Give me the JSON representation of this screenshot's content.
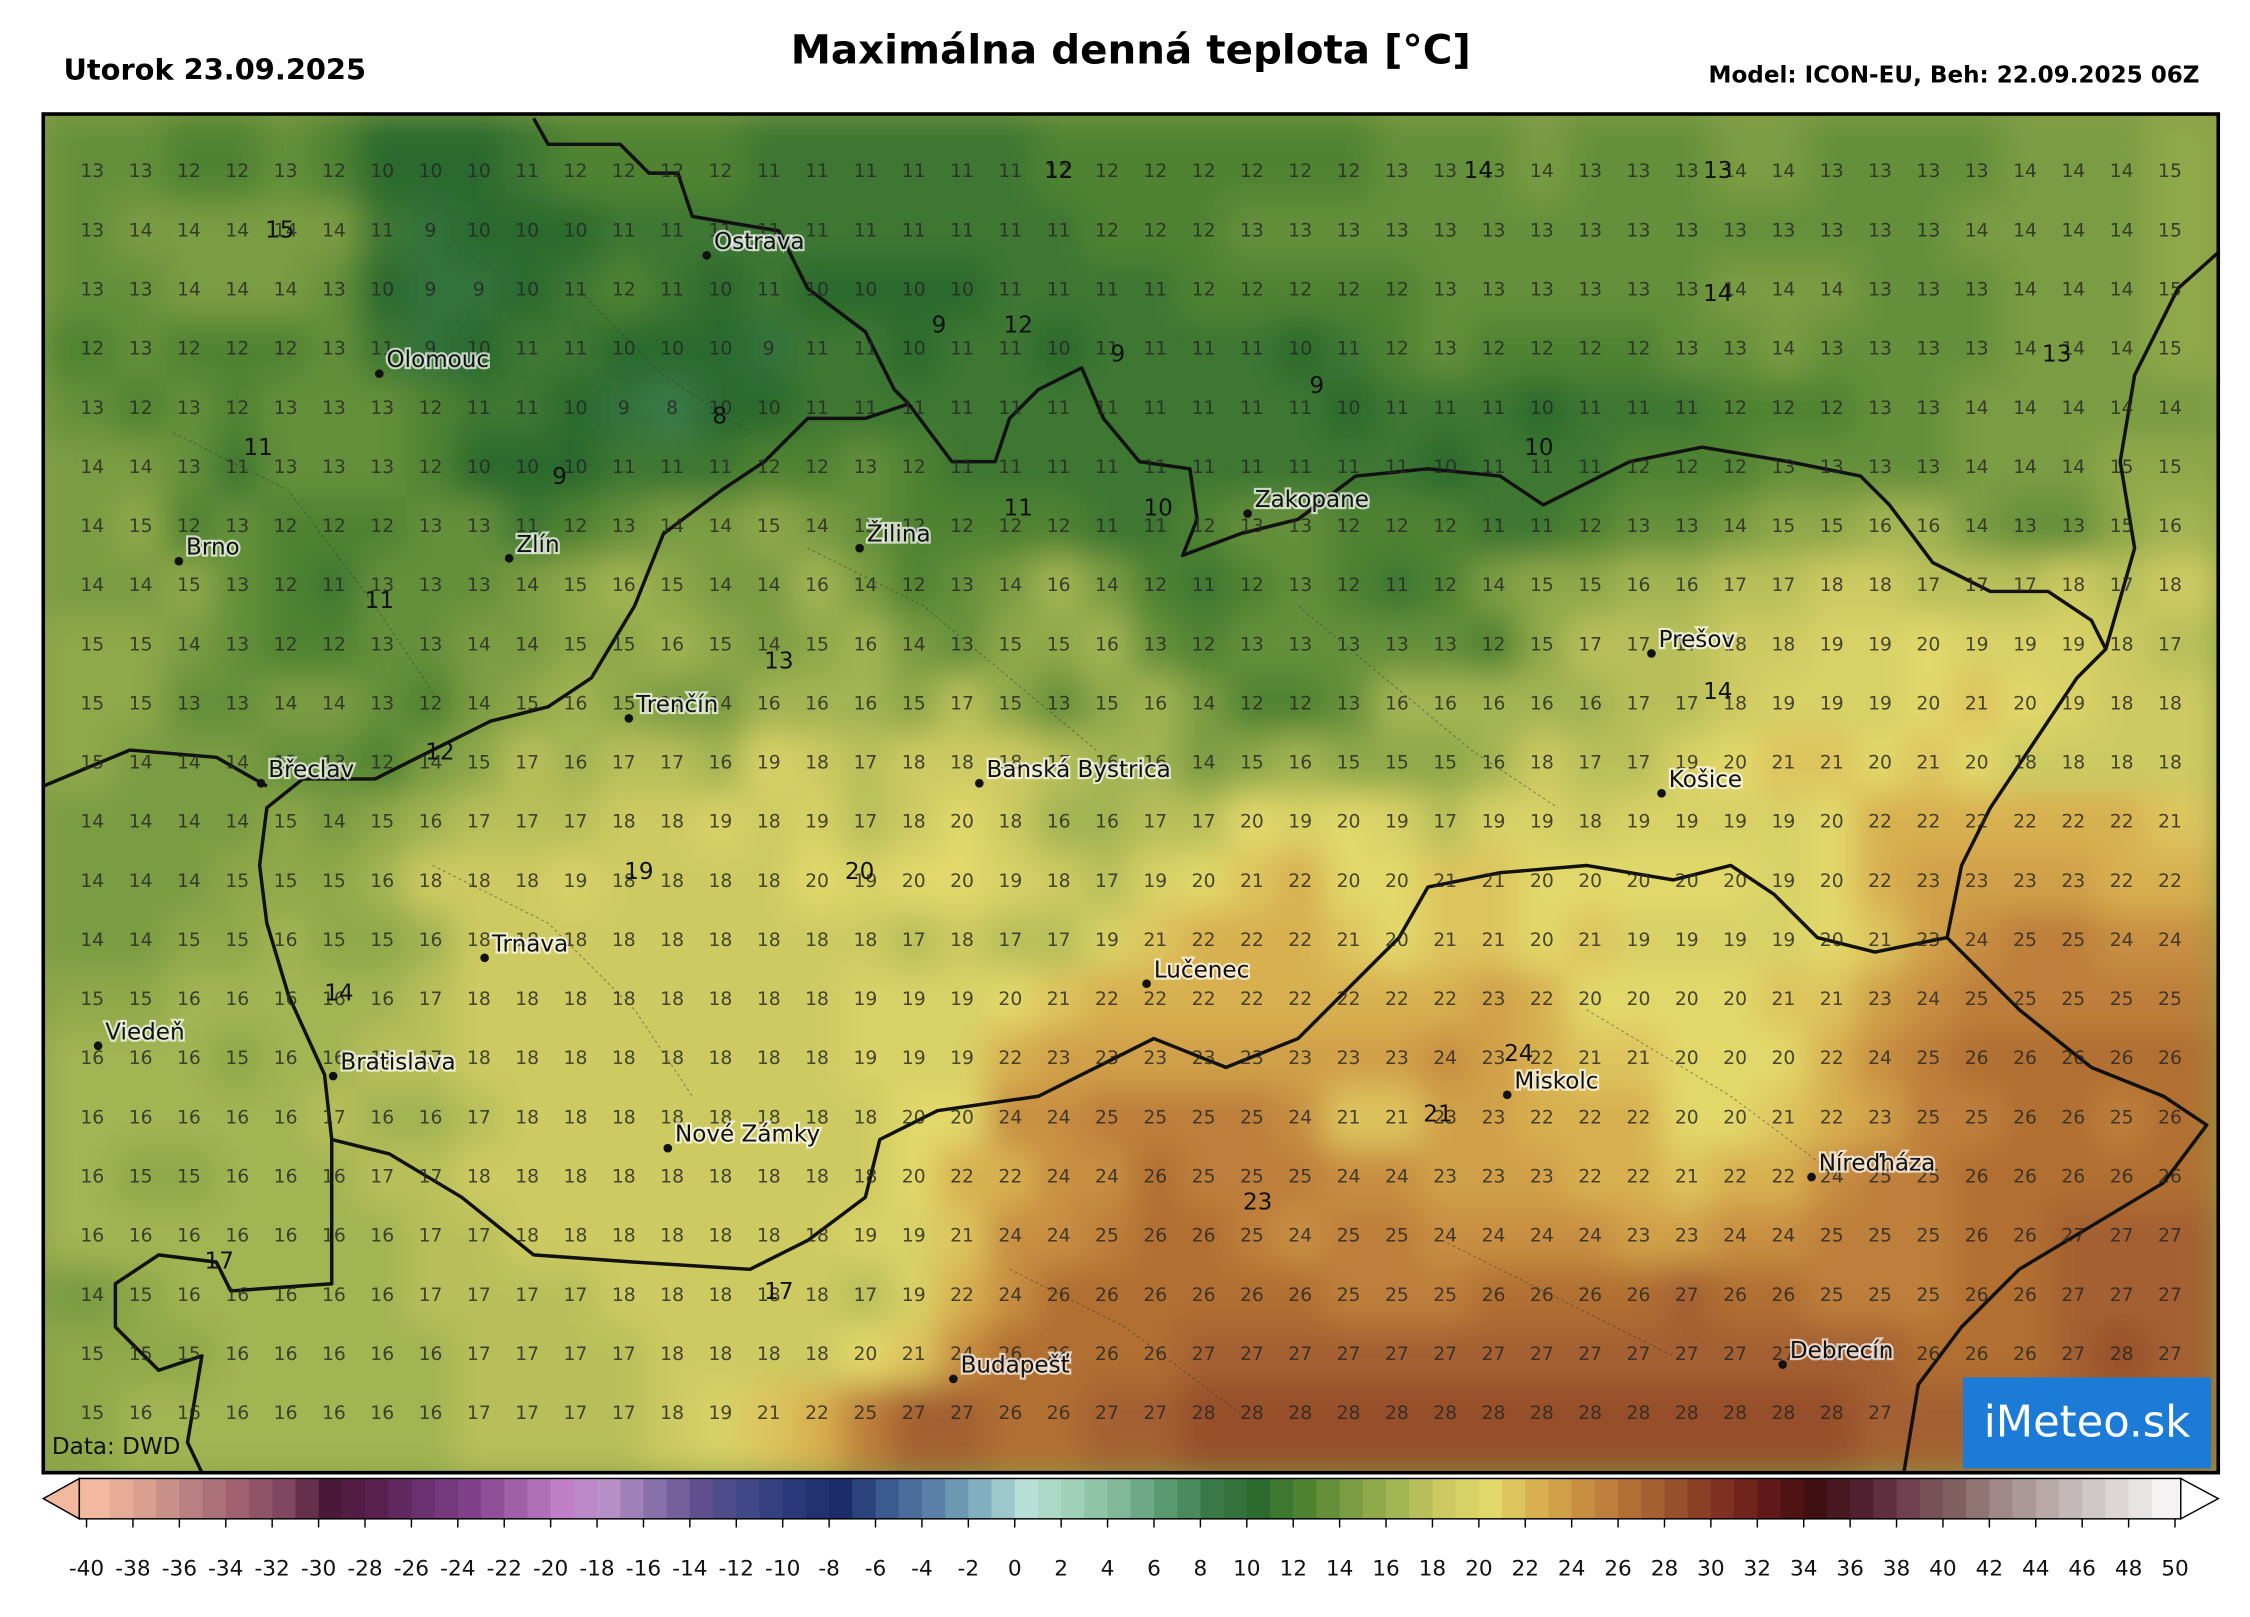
{
  "header": {
    "date": "Utorok 23.09.2025",
    "title": "Maximálna denná teplota [°C]",
    "model": "Model: ICON-EU, Beh: 22.09.2025 06Z"
  },
  "map": {
    "source": "Data: DWD",
    "logo": "iMeteo.sk",
    "grid": [
      [
        13,
        13,
        12,
        12,
        13,
        12,
        10,
        10,
        10,
        11,
        12,
        12,
        12,
        12,
        11,
        11,
        11,
        11,
        11,
        11,
        12,
        12,
        12,
        12,
        12,
        12,
        12,
        13,
        13,
        13,
        14,
        13,
        13,
        13,
        14,
        14,
        13,
        13,
        13,
        13,
        14,
        14,
        14,
        15
      ],
      [
        13,
        14,
        14,
        14,
        14,
        14,
        11,
        9,
        10,
        10,
        10,
        11,
        11,
        11,
        11,
        11,
        11,
        11,
        11,
        11,
        11,
        12,
        12,
        12,
        13,
        13,
        13,
        13,
        13,
        13,
        13,
        13,
        13,
        13,
        13,
        13,
        13,
        13,
        13,
        14,
        14,
        14,
        14,
        15
      ],
      [
        13,
        13,
        14,
        14,
        14,
        13,
        10,
        9,
        9,
        10,
        11,
        12,
        11,
        10,
        11,
        10,
        10,
        10,
        10,
        11,
        11,
        11,
        11,
        12,
        12,
        12,
        12,
        12,
        13,
        13,
        13,
        13,
        13,
        13,
        14,
        14,
        14,
        13,
        13,
        13,
        14,
        14,
        14,
        15
      ],
      [
        12,
        13,
        12,
        12,
        12,
        13,
        11,
        9,
        10,
        11,
        11,
        10,
        10,
        10,
        9,
        11,
        11,
        10,
        11,
        11,
        10,
        11,
        11,
        11,
        11,
        10,
        11,
        12,
        13,
        12,
        12,
        12,
        12,
        13,
        13,
        14,
        13,
        13,
        13,
        13,
        14,
        14,
        14,
        15
      ],
      [
        13,
        12,
        13,
        12,
        13,
        13,
        13,
        12,
        11,
        11,
        10,
        9,
        8,
        10,
        10,
        11,
        11,
        11,
        11,
        11,
        11,
        11,
        11,
        11,
        11,
        11,
        10,
        11,
        11,
        11,
        10,
        11,
        11,
        11,
        12,
        12,
        12,
        13,
        13,
        14,
        14,
        14,
        14,
        14
      ],
      [
        14,
        14,
        13,
        11,
        13,
        13,
        13,
        12,
        10,
        10,
        10,
        11,
        11,
        11,
        12,
        12,
        13,
        12,
        11,
        11,
        11,
        11,
        11,
        11,
        11,
        11,
        11,
        11,
        10,
        11,
        11,
        11,
        12,
        12,
        12,
        13,
        13,
        13,
        13,
        14,
        14,
        14,
        15,
        15
      ],
      [
        14,
        15,
        12,
        13,
        12,
        12,
        12,
        13,
        13,
        11,
        12,
        13,
        14,
        14,
        15,
        14,
        13,
        12,
        12,
        12,
        12,
        11,
        11,
        12,
        13,
        13,
        12,
        12,
        12,
        11,
        11,
        12,
        13,
        13,
        14,
        15,
        15,
        16,
        16,
        14,
        13,
        13,
        15,
        16
      ],
      [
        14,
        14,
        15,
        13,
        12,
        11,
        13,
        13,
        13,
        14,
        15,
        16,
        15,
        14,
        14,
        16,
        14,
        12,
        13,
        14,
        16,
        14,
        12,
        11,
        12,
        13,
        12,
        11,
        12,
        14,
        15,
        15,
        16,
        16,
        17,
        17,
        18,
        18,
        17,
        17,
        17,
        18,
        17,
        18
      ],
      [
        15,
        15,
        14,
        13,
        12,
        12,
        13,
        13,
        14,
        14,
        15,
        15,
        16,
        15,
        14,
        15,
        16,
        14,
        13,
        15,
        15,
        16,
        13,
        12,
        13,
        13,
        13,
        13,
        13,
        12,
        15,
        17,
        17,
        17,
        18,
        18,
        19,
        19,
        20,
        19,
        19,
        19,
        18,
        17
      ],
      [
        15,
        15,
        13,
        13,
        14,
        14,
        13,
        12,
        14,
        15,
        16,
        15,
        14,
        14,
        16,
        16,
        16,
        15,
        17,
        15,
        13,
        15,
        16,
        14,
        12,
        12,
        13,
        16,
        16,
        16,
        16,
        16,
        17,
        17,
        18,
        19,
        19,
        19,
        20,
        21,
        20,
        19,
        18,
        18
      ],
      [
        15,
        14,
        14,
        14,
        13,
        13,
        12,
        14,
        15,
        17,
        16,
        17,
        17,
        16,
        19,
        18,
        17,
        18,
        18,
        18,
        17,
        16,
        16,
        14,
        15,
        16,
        15,
        15,
        15,
        16,
        18,
        17,
        17,
        19,
        20,
        21,
        21,
        20,
        21,
        20,
        18,
        18,
        18,
        18
      ],
      [
        14,
        14,
        14,
        14,
        15,
        14,
        15,
        16,
        17,
        17,
        17,
        18,
        18,
        19,
        18,
        19,
        17,
        18,
        20,
        18,
        16,
        16,
        17,
        17,
        20,
        19,
        20,
        19,
        17,
        19,
        19,
        18,
        19,
        19,
        19,
        19,
        20,
        22,
        22,
        22,
        22,
        22,
        22,
        21
      ],
      [
        14,
        14,
        14,
        15,
        15,
        15,
        16,
        18,
        18,
        18,
        19,
        18,
        18,
        18,
        18,
        20,
        19,
        20,
        20,
        19,
        18,
        17,
        19,
        20,
        21,
        22,
        20,
        20,
        21,
        21,
        20,
        20,
        20,
        20,
        20,
        19,
        20,
        22,
        23,
        23,
        23,
        23,
        22,
        22
      ],
      [
        14,
        14,
        15,
        15,
        16,
        15,
        15,
        16,
        18,
        18,
        18,
        18,
        18,
        18,
        18,
        18,
        18,
        17,
        18,
        17,
        17,
        19,
        21,
        22,
        22,
        22,
        21,
        20,
        21,
        21,
        20,
        21,
        19,
        19,
        19,
        19,
        20,
        21,
        23,
        24,
        25,
        25,
        24,
        24
      ],
      [
        15,
        15,
        16,
        16,
        16,
        16,
        16,
        17,
        18,
        18,
        18,
        18,
        18,
        18,
        18,
        18,
        19,
        19,
        19,
        20,
        21,
        22,
        22,
        22,
        22,
        22,
        22,
        22,
        22,
        23,
        22,
        20,
        20,
        20,
        20,
        21,
        21,
        23,
        24,
        25,
        25,
        25,
        25,
        25
      ],
      [
        16,
        16,
        16,
        15,
        16,
        16,
        17,
        17,
        18,
        18,
        18,
        18,
        18,
        18,
        18,
        18,
        19,
        19,
        19,
        22,
        23,
        23,
        23,
        23,
        23,
        23,
        23,
        23,
        24,
        23,
        22,
        21,
        21,
        20,
        20,
        20,
        22,
        24,
        25,
        26,
        26,
        26,
        26,
        26
      ],
      [
        16,
        16,
        16,
        16,
        16,
        17,
        16,
        16,
        17,
        18,
        18,
        18,
        18,
        18,
        18,
        18,
        18,
        20,
        20,
        24,
        24,
        25,
        25,
        25,
        25,
        24,
        21,
        21,
        23,
        23,
        22,
        22,
        22,
        20,
        20,
        21,
        22,
        23,
        25,
        25,
        26,
        26,
        25,
        26
      ],
      [
        16,
        15,
        15,
        16,
        16,
        16,
        17,
        17,
        18,
        18,
        18,
        18,
        18,
        18,
        18,
        18,
        18,
        20,
        22,
        22,
        24,
        24,
        26,
        25,
        25,
        25,
        24,
        24,
        23,
        23,
        23,
        22,
        22,
        21,
        22,
        22,
        24,
        25,
        25,
        26,
        26,
        26,
        26,
        26
      ],
      [
        16,
        16,
        16,
        16,
        16,
        16,
        16,
        17,
        17,
        18,
        18,
        18,
        18,
        18,
        18,
        18,
        19,
        19,
        21,
        24,
        24,
        25,
        26,
        26,
        25,
        24,
        25,
        25,
        24,
        24,
        24,
        24,
        23,
        23,
        24,
        24,
        25,
        25,
        25,
        26,
        26,
        27,
        27,
        27
      ],
      [
        14,
        15,
        16,
        16,
        16,
        16,
        16,
        17,
        17,
        17,
        17,
        18,
        18,
        18,
        18,
        18,
        17,
        19,
        22,
        24,
        26,
        26,
        26,
        26,
        26,
        26,
        25,
        25,
        25,
        26,
        26,
        26,
        26,
        27,
        26,
        26,
        25,
        25,
        25,
        26,
        26,
        27,
        27,
        27
      ],
      [
        15,
        15,
        15,
        16,
        16,
        16,
        16,
        16,
        17,
        17,
        17,
        17,
        18,
        18,
        18,
        18,
        20,
        21,
        24,
        26,
        26,
        26,
        26,
        27,
        27,
        27,
        27,
        27,
        27,
        27,
        27,
        27,
        27,
        27,
        27,
        27,
        27,
        27,
        26,
        26,
        26,
        27,
        28,
        27
      ],
      [
        15,
        16,
        16,
        16,
        16,
        16,
        16,
        16,
        17,
        17,
        17,
        17,
        18,
        19,
        21,
        22,
        25,
        27,
        27,
        26,
        26,
        27,
        27,
        28,
        28,
        28,
        28,
        28,
        28,
        28,
        28,
        28,
        28,
        28,
        28,
        28,
        28,
        27
      ]
    ],
    "extremes": [
      12,
      14,
      13,
      15,
      9,
      12,
      9,
      9,
      14,
      13,
      8,
      11,
      9,
      10,
      11,
      10,
      11,
      13,
      14,
      12,
      19,
      20,
      14,
      24,
      21,
      23,
      17,
      17
    ],
    "cities": [
      "Ostrava",
      "Olomouc",
      "Brno",
      "Zlín",
      "Žilina",
      "Zakopane",
      "Prešov",
      "Trenčín",
      "Břeclav",
      "Banská Bystrica",
      "Košice",
      "Trnava",
      "Lučenec",
      "Viedeň",
      "Bratislava",
      "Miskolc",
      "Nové Zámky",
      "Níreďháza",
      "Budapešť",
      "Debrecín"
    ]
  },
  "colorbar": {
    "ticks": [
      -40,
      -38,
      -36,
      -34,
      -32,
      -30,
      -28,
      -26,
      -24,
      -22,
      -20,
      -18,
      -16,
      -14,
      -12,
      -10,
      -8,
      -6,
      -4,
      -2,
      0,
      2,
      4,
      6,
      8,
      10,
      12,
      14,
      16,
      18,
      20,
      22,
      24,
      26,
      28,
      30,
      32,
      34,
      36,
      38,
      40,
      42,
      44,
      46,
      48,
      50
    ],
    "colors": [
      "#f2b8a0",
      "#d9a090",
      "#b88080",
      "#a06070",
      "#804860",
      "#4a1838",
      "#5a2050",
      "#6a3070",
      "#80408a",
      "#a060a8",
      "#c080c8",
      "#b890c8",
      "#8870a8",
      "#605090",
      "#404888",
      "#283878",
      "#1c2c6a",
      "#3a5a90",
      "#5a80a8",
      "#80b0c0",
      "#b8e0d8",
      "#a0d0b8",
      "#80b898",
      "#5a9a70",
      "#3a7a48",
      "#2c6a2e",
      "#4f8332",
      "#7a9c42",
      "#a3b452",
      "#cdca62",
      "#e2d86a",
      "#d8b050",
      "#c88f42",
      "#b16f33",
      "#96502c",
      "#803020",
      "#601818",
      "#401010",
      "#502030",
      "#704050",
      "#806060",
      "#a08888",
      "#b8a8a8",
      "#d0c8c8",
      "#e8e4e4",
      "#ffffff"
    ]
  }
}
